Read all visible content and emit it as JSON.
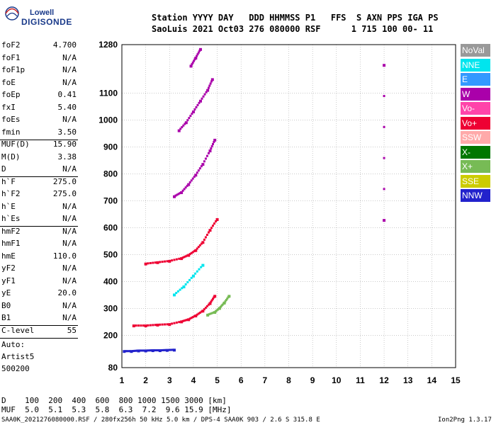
{
  "logo": {
    "top": "Lowell",
    "main": "DIGISONDE"
  },
  "header": {
    "row1": "Station YYYY DAY   DDD HHMMSS P1   FFS  S AXN PPS IGA PS",
    "row2": "SaoLuis 2021 Oct03 276 080000 RSF      1 715 100 00- 11"
  },
  "params": [
    {
      "name": "foF2",
      "value": "4.700"
    },
    {
      "name": "foF1",
      "value": "N/A"
    },
    {
      "name": "foF1p",
      "value": "N/A"
    },
    {
      "name": "foE",
      "value": "N/A"
    },
    {
      "name": "foEp",
      "value": "0.41"
    },
    {
      "name": "fxI",
      "value": "5.40"
    },
    {
      "name": "foEs",
      "value": "N/A"
    },
    {
      "name": "fmin",
      "value": "3.50"
    },
    {
      "name": "MUF(D)",
      "value": "15.90"
    },
    {
      "name": "M(D)",
      "value": "3.38"
    },
    {
      "name": "D",
      "value": "N/A"
    },
    {
      "name": "h`F",
      "value": "275.0"
    },
    {
      "name": "h`F2",
      "value": "275.0"
    },
    {
      "name": "h`E",
      "value": "N/A"
    },
    {
      "name": "h`Es",
      "value": "N/A"
    },
    {
      "name": "hmF2",
      "value": "N/A"
    },
    {
      "name": "hmF1",
      "value": "N/A"
    },
    {
      "name": "hmE",
      "value": "110.0"
    },
    {
      "name": "yF2",
      "value": "N/A"
    },
    {
      "name": "yF1",
      "value": "N/A"
    },
    {
      "name": "yE",
      "value": "20.0"
    },
    {
      "name": "B0",
      "value": "N/A"
    },
    {
      "name": "B1",
      "value": "N/A"
    },
    {
      "name": "C-level",
      "value": "55"
    }
  ],
  "autoscaling": {
    "line1": "Auto:",
    "line2": "Artist5",
    "line3": "500200"
  },
  "legend": [
    {
      "label": "NoVal",
      "color": "#999999"
    },
    {
      "label": "NNE",
      "color": "#00e5ee"
    },
    {
      "label": "E",
      "color": "#3399ff"
    },
    {
      "label": "W",
      "color": "#aa00aa"
    },
    {
      "label": "Vo-",
      "color": "#ff44aa"
    },
    {
      "label": "Vo+",
      "color": "#ee0033"
    },
    {
      "label": "SSW",
      "color": "#ffaaaa"
    },
    {
      "label": "X-",
      "color": "#007700"
    },
    {
      "label": "X+",
      "color": "#77bb55"
    },
    {
      "label": "SSE",
      "color": "#cccc00"
    },
    {
      "label": "NNW",
      "color": "#2222cc"
    }
  ],
  "bottom": {
    "d_row": "D    100  200  400  600  800 1000 1500 3000 [km]",
    "muf_row": "MUF  5.0  5.1  5.3  5.8  6.3  7.2  9.6 15.9 [MHz]"
  },
  "footer": {
    "left": "SAA0K_2021276080000.RSF / 280fx256h 50 kHz 5.0 km / DPS-4 SAA0K 903 / 2.6 S 315.8 E",
    "right": "Ion2Png 1.3.17"
  },
  "chart_data": {
    "type": "scatter",
    "xlabel": "",
    "ylabel": "",
    "xlim": [
      1,
      15
    ],
    "ylim": [
      80,
      1280
    ],
    "x_ticks": [
      1,
      2,
      3,
      4,
      5,
      6,
      7,
      8,
      9,
      10,
      11,
      12,
      13,
      14,
      15
    ],
    "y_ticks": [
      80,
      200,
      300,
      400,
      500,
      600,
      700,
      800,
      900,
      1000,
      1100,
      1280
    ],
    "grid": true,
    "traces": [
      {
        "name": "E-layer echo",
        "color": "#2222cc",
        "points": [
          [
            1.1,
            140
          ],
          [
            1.4,
            140
          ],
          [
            1.7,
            142
          ],
          [
            2.0,
            142
          ],
          [
            2.3,
            143
          ],
          [
            2.6,
            143
          ],
          [
            2.9,
            144
          ],
          [
            3.2,
            145
          ]
        ]
      },
      {
        "name": "F-layer 1st hop",
        "color": "#ee0033",
        "points": [
          [
            1.5,
            235
          ],
          [
            2.0,
            235
          ],
          [
            2.5,
            238
          ],
          [
            3.0,
            240
          ],
          [
            3.5,
            250
          ],
          [
            3.8,
            258
          ],
          [
            4.1,
            272
          ],
          [
            4.4,
            290
          ],
          [
            4.7,
            318
          ],
          [
            4.9,
            345
          ]
        ]
      },
      {
        "name": "F-layer 1st hop X",
        "color": "#77bb55",
        "points": [
          [
            4.6,
            275
          ],
          [
            4.9,
            285
          ],
          [
            5.1,
            300
          ],
          [
            5.3,
            320
          ],
          [
            5.5,
            345
          ]
        ]
      },
      {
        "name": "F-layer 2nd hop",
        "color": "#ee0033",
        "points": [
          [
            2.0,
            465
          ],
          [
            2.5,
            470
          ],
          [
            3.0,
            475
          ],
          [
            3.5,
            485
          ],
          [
            3.8,
            497
          ],
          [
            4.1,
            515
          ],
          [
            4.4,
            545
          ],
          [
            4.7,
            590
          ],
          [
            5.0,
            630
          ]
        ]
      },
      {
        "name": "F-layer 3rd hop",
        "color": "#aa00aa",
        "points": [
          [
            3.2,
            715
          ],
          [
            3.5,
            730
          ],
          [
            3.8,
            760
          ],
          [
            4.1,
            795
          ],
          [
            4.4,
            835
          ],
          [
            4.7,
            885
          ],
          [
            4.9,
            925
          ]
        ]
      },
      {
        "name": "F-layer 4th hop",
        "color": "#aa00aa",
        "points": [
          [
            3.4,
            960
          ],
          [
            3.7,
            990
          ],
          [
            4.0,
            1030
          ],
          [
            4.3,
            1070
          ],
          [
            4.6,
            1110
          ],
          [
            4.8,
            1150
          ]
        ]
      },
      {
        "name": "F-layer 5th hop",
        "color": "#aa00aa",
        "points": [
          [
            3.9,
            1200
          ],
          [
            4.1,
            1230
          ],
          [
            4.3,
            1262
          ]
        ]
      },
      {
        "name": "Oblique echo",
        "color": "#00e5ee",
        "points": [
          [
            3.2,
            350
          ],
          [
            3.6,
            380
          ],
          [
            4.0,
            420
          ],
          [
            4.4,
            460
          ]
        ]
      },
      {
        "name": "Isolated points",
        "color": "#aa00aa",
        "points": [
          [
            12.0,
            1203
          ],
          [
            12.0,
            627
          ]
        ]
      }
    ]
  }
}
